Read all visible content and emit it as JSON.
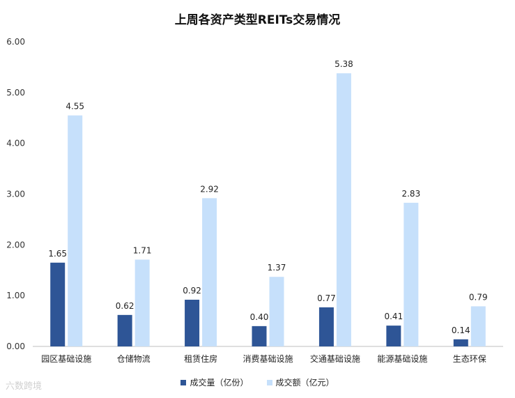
{
  "chart_data": {
    "type": "bar",
    "title": "上周各资产类型REITs交易情况",
    "categories": [
      "园区基础设施",
      "仓储物流",
      "租赁住房",
      "消费基础设施",
      "交通基础设施",
      "能源基础设施",
      "生态环保"
    ],
    "series": [
      {
        "name": "成交量（亿份）",
        "values": [
          1.65,
          0.62,
          0.92,
          0.4,
          0.77,
          0.41,
          0.14
        ],
        "color": "#2e5596"
      },
      {
        "name": "成交额（亿元）",
        "values": [
          4.55,
          1.71,
          2.92,
          1.37,
          5.38,
          2.83,
          0.79
        ],
        "color": "#c6e0fb"
      }
    ],
    "ylim": [
      0,
      6
    ],
    "yticks": [
      "0.00",
      "1.00",
      "2.00",
      "3.00",
      "4.00",
      "5.00",
      "6.00"
    ],
    "grid": false,
    "legend_position": "bottom"
  },
  "watermark": "六数跨境"
}
